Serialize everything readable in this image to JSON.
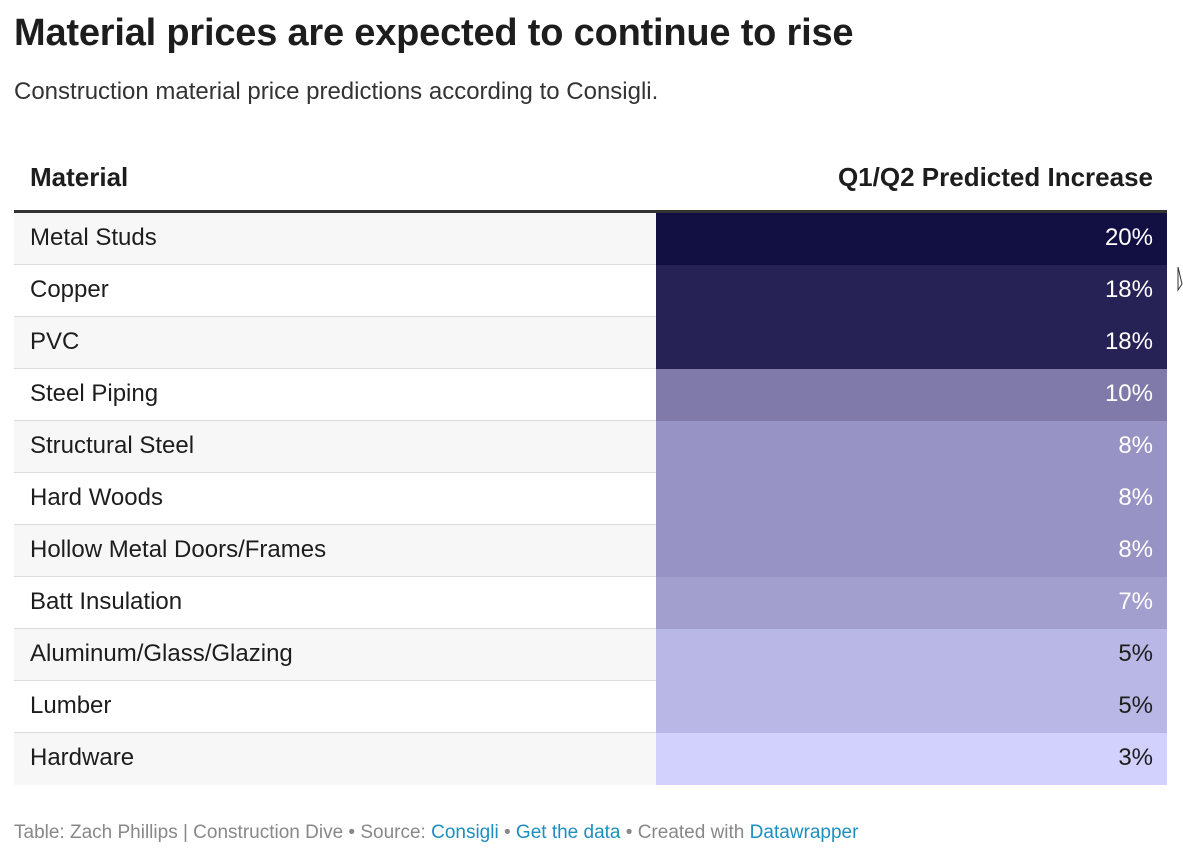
{
  "header": {
    "title": "Material prices are expected to continue to rise",
    "subtitle": "Construction material price predictions according to Consigli."
  },
  "chart_data": {
    "type": "table",
    "title": "Material prices are expected to continue to rise",
    "subtitle": "Construction material price predictions according to Consigli.",
    "columns": [
      "Material",
      "Q1/Q2 Predicted Increase"
    ],
    "rows": [
      {
        "material": "Metal Studs",
        "value": 20,
        "label": "20%",
        "color": "#121042",
        "text_color": "#ffffff"
      },
      {
        "material": "Copper",
        "value": 18,
        "label": "18%",
        "color": "#262256",
        "text_color": "#ffffff"
      },
      {
        "material": "PVC",
        "value": 18,
        "label": "18%",
        "color": "#262256",
        "text_color": "#ffffff"
      },
      {
        "material": "Steel Piping",
        "value": 10,
        "label": "10%",
        "color": "#807aaa",
        "text_color": "#ffffff"
      },
      {
        "material": "Structural Steel",
        "value": 8,
        "label": "8%",
        "color": "#9793c4",
        "text_color": "#ffffff"
      },
      {
        "material": "Hard Woods",
        "value": 8,
        "label": "8%",
        "color": "#9793c4",
        "text_color": "#ffffff"
      },
      {
        "material": "Hollow Metal Doors/Frames",
        "value": 8,
        "label": "8%",
        "color": "#9793c4",
        "text_color": "#ffffff"
      },
      {
        "material": "Batt Insulation",
        "value": 7,
        "label": "7%",
        "color": "#a29fcf",
        "text_color": "#ffffff"
      },
      {
        "material": "Aluminum/Glass/Glazing",
        "value": 5,
        "label": "5%",
        "color": "#b9b7e6",
        "text_color": "#1d1d1d"
      },
      {
        "material": "Lumber",
        "value": 5,
        "label": "5%",
        "color": "#b9b7e6",
        "text_color": "#1d1d1d"
      },
      {
        "material": "Hardware",
        "value": 3,
        "label": "3%",
        "color": "#d2d0fc",
        "text_color": "#1d1d1d"
      }
    ]
  },
  "footer": {
    "prefix": "Table: Zach Phillips | Construction Dive • Source: ",
    "source_link": "Consigli",
    "sep1": " • ",
    "data_link": "Get the data",
    "sep2": " • Created with ",
    "tool_link": "Datawrapper"
  }
}
